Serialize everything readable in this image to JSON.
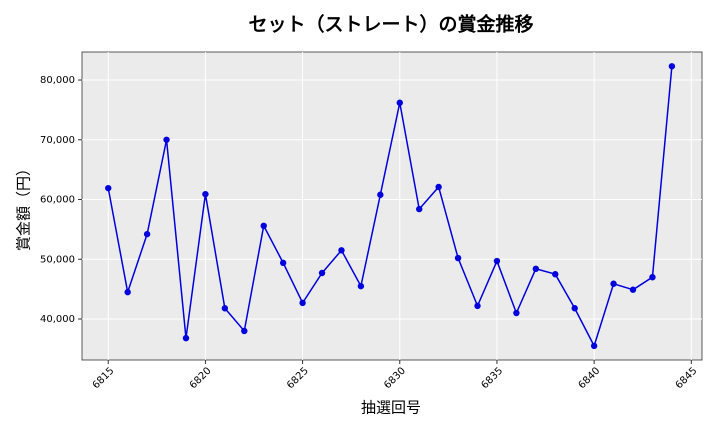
{
  "chart_data": {
    "type": "line",
    "title": "セット（ストレート）の賞金推移",
    "x_label": "抽選回号",
    "y_label": "賞金額（円）",
    "x": [
      6815,
      6816,
      6817,
      6818,
      6819,
      6820,
      6821,
      6822,
      6823,
      6824,
      6825,
      6826,
      6827,
      6828,
      6829,
      6830,
      6831,
      6832,
      6833,
      6834,
      6835,
      6836,
      6837,
      6838,
      6839,
      6840,
      6841,
      6842,
      6843,
      6844
    ],
    "series": [
      {
        "color": "#0000dd",
        "values": [
          61900,
          44500,
          54200,
          70000,
          36800,
          60900,
          41800,
          38000,
          55600,
          49400,
          42700,
          47700,
          51500,
          45500,
          60800,
          76200,
          58400,
          62100,
          50200,
          42200,
          49700,
          41000,
          48400,
          47500,
          41800,
          35500,
          45900,
          44900,
          47000,
          82300
        ]
      }
    ],
    "xlim": [
      6813.65,
      6845.55
    ],
    "xticks": [
      6815,
      6820,
      6825,
      6830,
      6835,
      6840,
      6845
    ],
    "ylim": [
      33140,
      84690
    ],
    "yticks": [
      {
        "value": 40000,
        "label": "40,000"
      },
      {
        "value": 50000,
        "label": "50,000"
      },
      {
        "value": 60000,
        "label": "60,000"
      },
      {
        "value": 70000,
        "label": "70,000"
      },
      {
        "value": 80000,
        "label": "80,000"
      }
    ],
    "grid": true
  }
}
